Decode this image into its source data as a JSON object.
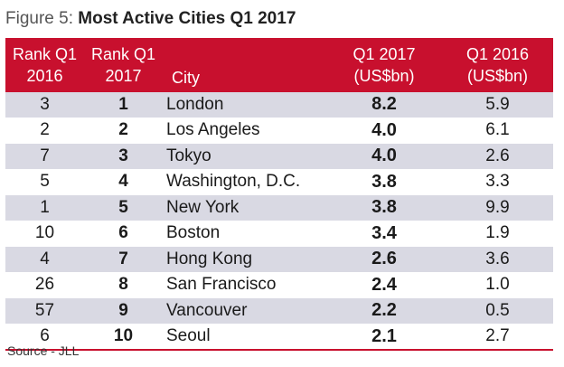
{
  "figure": {
    "label": "Figure 5: ",
    "title": "Most Active Cities Q1 2017"
  },
  "table": {
    "headers": {
      "rank_2016": "Rank Q1 2016",
      "rank_2017": "Rank Q1 2017",
      "city": "City",
      "q1_2017": "Q1 2017 (US$bn)",
      "q1_2016": "Q1 2016 (US$bn)"
    },
    "rows": [
      {
        "rank_2016": "3",
        "rank_2017": "1",
        "city": "London",
        "q1_2017": "8.2",
        "q1_2016": "5.9"
      },
      {
        "rank_2016": "2",
        "rank_2017": "2",
        "city": "Los Angeles",
        "q1_2017": "4.0",
        "q1_2016": "6.1"
      },
      {
        "rank_2016": "7",
        "rank_2017": "3",
        "city": "Tokyo",
        "q1_2017": "4.0",
        "q1_2016": "2.6"
      },
      {
        "rank_2016": "5",
        "rank_2017": "4",
        "city": "Washington, D.C.",
        "q1_2017": "3.8",
        "q1_2016": "3.3"
      },
      {
        "rank_2016": "1",
        "rank_2017": "5",
        "city": "New York",
        "q1_2017": "3.8",
        "q1_2016": "9.9"
      },
      {
        "rank_2016": "10",
        "rank_2017": "6",
        "city": "Boston",
        "q1_2017": "3.4",
        "q1_2016": "1.9"
      },
      {
        "rank_2016": "4",
        "rank_2017": "7",
        "city": "Hong Kong",
        "q1_2017": "2.6",
        "q1_2016": "3.6"
      },
      {
        "rank_2016": "26",
        "rank_2017": "8",
        "city": "San Francisco",
        "q1_2017": "2.4",
        "q1_2016": "1.0"
      },
      {
        "rank_2016": "57",
        "rank_2017": "9",
        "city": "Vancouver",
        "q1_2017": "2.2",
        "q1_2016": "0.5"
      },
      {
        "rank_2016": "6",
        "rank_2017": "10",
        "city": "Seoul",
        "q1_2017": "2.1",
        "q1_2016": "2.7"
      }
    ]
  },
  "source": "Source - JLL",
  "colors": {
    "header_bg": "#c8102e",
    "band_bg": "#d9d9e3"
  }
}
